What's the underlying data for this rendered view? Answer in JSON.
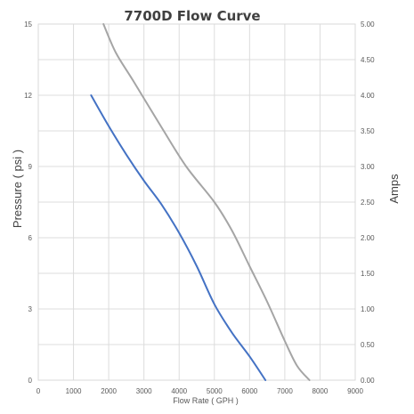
{
  "chart_data": {
    "type": "line",
    "title": "7700D Flow Curve",
    "xlabel": "Flow Rate ( GPH )",
    "ylabel": "Pressure ( psi )",
    "y2label": "Amps",
    "xlim": [
      0,
      9000
    ],
    "ylim": [
      0,
      15
    ],
    "y2lim": [
      0,
      5
    ],
    "x_ticks": [
      0,
      1000,
      2000,
      3000,
      4000,
      5000,
      6000,
      7000,
      8000,
      9000
    ],
    "y_ticks": [
      0,
      3,
      6,
      9,
      12,
      15
    ],
    "y2_ticks": [
      "0.00",
      "0.50",
      "1.00",
      "1.50",
      "2.00",
      "2.50",
      "3.00",
      "3.50",
      "4.00",
      "4.50",
      "5.00"
    ],
    "grid": true,
    "series": [
      {
        "axis": "left",
        "color": "#4472c4",
        "points": [
          [
            1500,
            12.0
          ],
          [
            2000,
            10.7
          ],
          [
            2500,
            9.5
          ],
          [
            3000,
            8.4
          ],
          [
            3500,
            7.4
          ],
          [
            4000,
            6.2
          ],
          [
            4500,
            4.8
          ],
          [
            5000,
            3.2
          ],
          [
            5500,
            2.0
          ],
          [
            6000,
            1.0
          ],
          [
            6450,
            0.0
          ]
        ]
      },
      {
        "axis": "right",
        "color": "#a5a5a5",
        "points": [
          [
            1850,
            5.0
          ],
          [
            2200,
            4.6
          ],
          [
            2700,
            4.2
          ],
          [
            3500,
            3.55
          ],
          [
            4200,
            3.0
          ],
          [
            5000,
            2.5
          ],
          [
            5500,
            2.1
          ],
          [
            6000,
            1.6
          ],
          [
            6500,
            1.1
          ],
          [
            7000,
            0.55
          ],
          [
            7350,
            0.2
          ],
          [
            7700,
            0.0
          ]
        ]
      }
    ]
  }
}
